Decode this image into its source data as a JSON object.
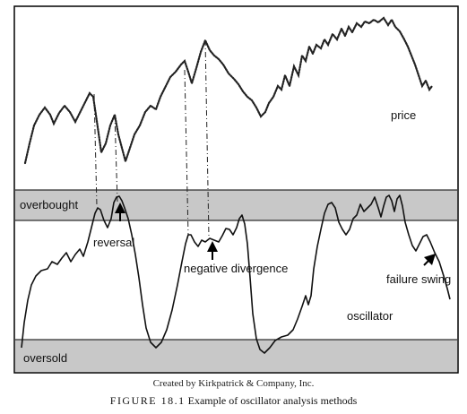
{
  "diagram": {
    "bands": {
      "upper": "overbought",
      "lower": "oversold"
    },
    "series": {
      "price": "price",
      "oscillator": "oscillator"
    },
    "annotations": {
      "reversal": "reversal",
      "negative_divergence": "negative divergence",
      "failure_swing": "failure swing"
    },
    "colors": {
      "band_fill": "#c8c8c8",
      "line": "#111111",
      "frame": "#000000"
    }
  },
  "caption": {
    "credit": "Created by Kirkpatrick & Company, Inc.",
    "figure_number": "FIGURE 18.1",
    "title": "Example of oscillator analysis methods"
  }
}
